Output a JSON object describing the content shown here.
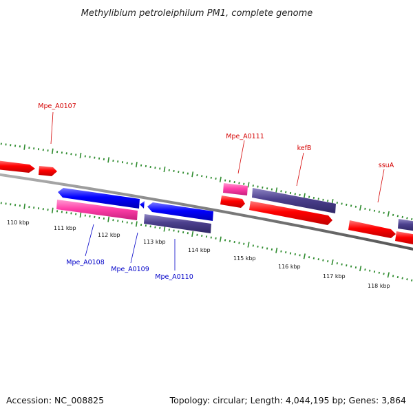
{
  "title": "Methylibium petroleiphilum PM1, complete genome",
  "footer": {
    "accession": "Accession: NC_008825",
    "summary": "Topology: circular; Length: 4,044,195 bp; Genes: 3,864"
  },
  "ruler": {
    "labels": [
      "110 kbp",
      "111 kbp",
      "112 kbp",
      "113 kbp",
      "114 kbp",
      "115 kbp",
      "116 kbp",
      "117 kbp",
      "118 kbp"
    ]
  },
  "genes": {
    "Mpe_A0107": "Mpe_A0107",
    "Mpe_A0108": "Mpe_A0108",
    "Mpe_A0109": "Mpe_A0109",
    "Mpe_A0110": "Mpe_A0110",
    "Mpe_A0111": "Mpe_A0111",
    "kefB": "kefB",
    "ssuA": "ssuA"
  },
  "colors": {
    "backbone": "#7a7a7a",
    "tick": "#2e8b2e",
    "forward_red": "#ff0000",
    "pink": "#ff3fa8",
    "blue": "#0000ff",
    "slate": "#4b3f8c",
    "label_red": "#d40000",
    "label_blue": "#0000c8"
  }
}
